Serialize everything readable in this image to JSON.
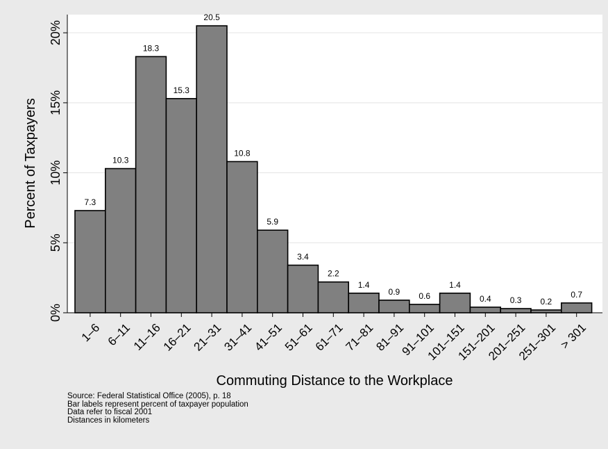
{
  "chart_data": {
    "type": "bar",
    "xlabel": "Commuting Distance to the Workplace",
    "ylabel": "Percent of Taxpayers",
    "categories": [
      "1–6",
      "6–11",
      "11–16",
      "16–21",
      "21–31",
      "31–41",
      "41–51",
      "51–61",
      "61–71",
      "71–81",
      "81–91",
      "91–101",
      "101–151",
      "151–201",
      "201–251",
      "251–301",
      "> 301"
    ],
    "values": [
      7.3,
      10.3,
      18.3,
      15.3,
      20.5,
      10.8,
      5.9,
      3.4,
      2.2,
      1.4,
      0.9,
      0.6,
      1.4,
      0.4,
      0.3,
      0.2,
      0.7
    ],
    "value_labels": [
      "7.3",
      "10.3",
      "18.3",
      "15.3",
      "20.5",
      "10.8",
      "5.9",
      "3.4",
      "2.2",
      "1.4",
      "0.9",
      "0.6",
      "1.4",
      "0.4",
      "0.3",
      "0.2",
      "0.7"
    ],
    "yticks": [
      0,
      5,
      10,
      15,
      20
    ],
    "ytick_labels": [
      "0%",
      "5%",
      "10%",
      "15%",
      "20%"
    ],
    "ylim": [
      0,
      21.3
    ],
    "grid": true,
    "bar_color": "#808080",
    "notes": [
      "Source: Federal Statistical Office (2005), p. 18",
      "Bar labels represent percent of taxpayer population",
      "Data refer to fiscal 2001",
      "Distances in kilometers"
    ]
  }
}
